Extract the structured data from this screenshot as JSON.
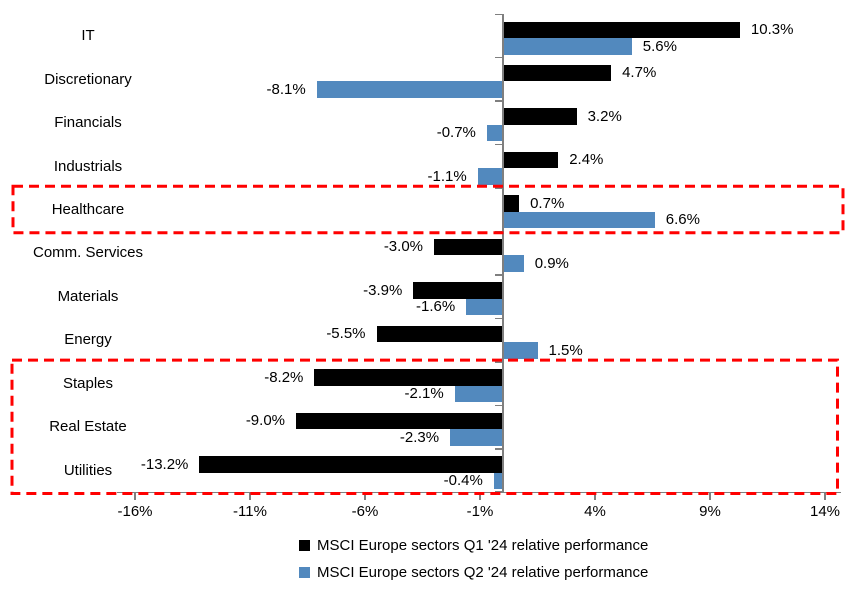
{
  "chart_data": {
    "type": "bar",
    "orientation": "horizontal-grouped",
    "title": "",
    "categories": [
      "IT",
      "Discretionary",
      "Financials",
      "Industrials",
      "Healthcare",
      "Comm. Services",
      "Materials",
      "Energy",
      "Staples",
      "Real Estate",
      "Utilities"
    ],
    "series": [
      {
        "name": "MSCI Europe sectors Q1 '24 relative performance",
        "color": "#000000",
        "values": [
          10.3,
          4.7,
          3.2,
          2.4,
          0.7,
          -3.0,
          -3.9,
          -5.5,
          -8.2,
          -9.0,
          -13.2
        ],
        "labels": [
          "10.3%",
          "4.7%",
          "3.2%",
          "2.4%",
          "0.7%",
          "-3.0%",
          "-3.9%",
          "-5.5%",
          "-8.2%",
          "-9.0%",
          "-13.2%"
        ]
      },
      {
        "name": "MSCI Europe sectors Q2 '24 relative performance",
        "color": "#5289BE",
        "values": [
          5.6,
          -8.1,
          -0.7,
          -1.1,
          6.6,
          0.9,
          -1.6,
          1.5,
          -2.1,
          -2.3,
          -0.4
        ],
        "labels": [
          "5.6%",
          "-8.1%",
          "-0.7%",
          "-1.1%",
          "6.6%",
          "0.9%",
          "-1.6%",
          "1.5%",
          "-2.1%",
          "-2.3%",
          "-0.4%"
        ]
      }
    ],
    "x_axis": {
      "tick_labels": [
        "-16%",
        "-11%",
        "-6%",
        "-1%",
        "4%",
        "9%",
        "14%"
      ],
      "tick_values": [
        -16,
        -11,
        -6,
        -1,
        4,
        9,
        14
      ],
      "range": [
        -16.8,
        14.7
      ]
    },
    "ylabel": "",
    "xlabel": "",
    "grid": false,
    "legend_position": "bottom",
    "annotations": {
      "highlight_boxes": [
        {
          "categories": [
            "Healthcare"
          ],
          "color": "#FF0000",
          "style": "dashed"
        },
        {
          "categories": [
            "Staples",
            "Real Estate",
            "Utilities"
          ],
          "color": "#FF0000",
          "style": "dashed"
        }
      ]
    }
  }
}
